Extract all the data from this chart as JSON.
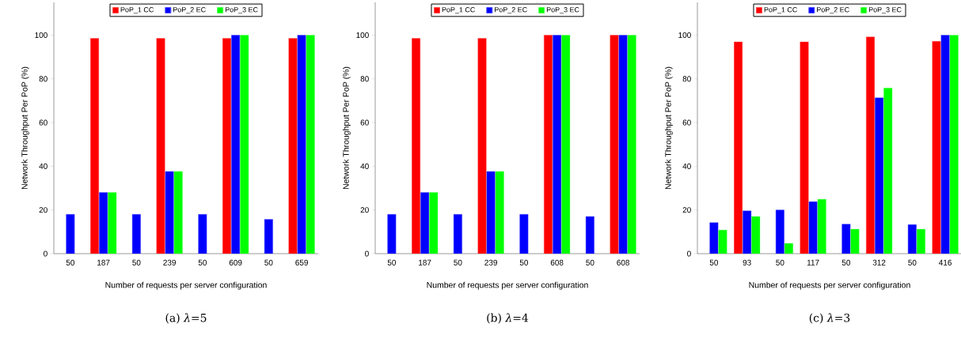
{
  "chart_data": [
    {
      "type": "bar",
      "title": "(a) *λ*=5",
      "xlabel": "Number of requests per server configuration",
      "ylabel": "Network Throughput Per PoP (%)",
      "categories": [
        "50",
        "187",
        "50",
        "239",
        "50",
        "609",
        "50",
        "659"
      ],
      "series": [
        {
          "name": "PoP_1 CC",
          "color": "#ff0000",
          "values": [
            null,
            98.5,
            null,
            98.5,
            null,
            98.5,
            null,
            98.5
          ]
        },
        {
          "name": "PoP_2 EC",
          "color": "#0000ff",
          "values": [
            18,
            28,
            18,
            37.6,
            18,
            100,
            15.7,
            100
          ]
        },
        {
          "name": "PoP_3 EC",
          "color": "#00ff00",
          "values": [
            null,
            28,
            null,
            37.6,
            null,
            100,
            null,
            100
          ]
        }
      ],
      "ylim": [
        0,
        115
      ],
      "yticks": [
        0,
        20,
        40,
        60,
        80,
        100
      ],
      "legend": "top"
    },
    {
      "type": "bar",
      "title": "(b) *λ*=4",
      "xlabel": "Number of requests per server configuration",
      "ylabel": "Network Throughput Per PoP (%)",
      "categories": [
        "50",
        "187",
        "50",
        "239",
        "50",
        "608",
        "50",
        "608"
      ],
      "series": [
        {
          "name": "PoP_1 CC",
          "color": "#ff0000",
          "values": [
            null,
            98.5,
            null,
            98.5,
            null,
            100,
            null,
            100
          ]
        },
        {
          "name": "PoP_2 EC",
          "color": "#0000ff",
          "values": [
            18,
            28,
            18,
            37.6,
            18,
            100,
            17,
            100
          ]
        },
        {
          "name": "PoP_3 EC",
          "color": "#00ff00",
          "values": [
            null,
            28,
            null,
            37.6,
            null,
            100,
            null,
            100
          ]
        }
      ],
      "ylim": [
        0,
        115
      ],
      "yticks": [
        0,
        20,
        40,
        60,
        80,
        100
      ],
      "legend": "top"
    },
    {
      "type": "bar",
      "title": "(c) *λ*=3",
      "xlabel": "Number of requests per server configuration",
      "ylabel": "Network Throughput Per PoP (%)",
      "categories": [
        "50",
        "93",
        "50",
        "117",
        "50",
        "312",
        "50",
        "416"
      ],
      "series": [
        {
          "name": "PoP_1 CC",
          "color": "#ff0000",
          "values": [
            null,
            96.9,
            null,
            96.9,
            null,
            99.2,
            null,
            97.2
          ]
        },
        {
          "name": "PoP_2 EC",
          "color": "#0000ff",
          "values": [
            14.2,
            19.6,
            20,
            23.8,
            13.5,
            71.3,
            13.3,
            100
          ]
        },
        {
          "name": "PoP_3 EC",
          "color": "#00ff00",
          "values": [
            10.8,
            17,
            4.7,
            24.9,
            11.2,
            75.8,
            11.2,
            100
          ]
        }
      ],
      "ylim": [
        0,
        115
      ],
      "yticks": [
        0,
        20,
        40,
        60,
        80,
        100
      ],
      "legend": "top"
    }
  ]
}
